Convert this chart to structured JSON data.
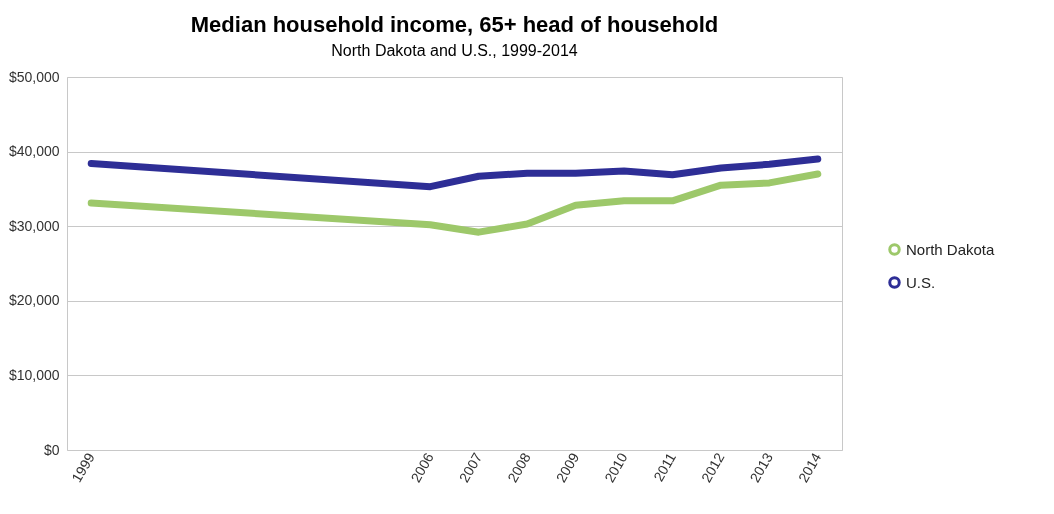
{
  "chart_data": {
    "type": "line",
    "title": "Median household income, 65+ head of household",
    "subtitle": "North Dakota and U.S., 1999-2014",
    "x": [
      1999,
      2006,
      2007,
      2008,
      2009,
      2010,
      2011,
      2012,
      2013,
      2014
    ],
    "series": [
      {
        "name": "North Dakota",
        "color": "#9dc86a",
        "values": [
          33100,
          30200,
          29200,
          30300,
          32800,
          33400,
          33400,
          35500,
          35800,
          37000
        ]
      },
      {
        "name": "U.S.",
        "color": "#2e2e96",
        "values": [
          38400,
          35300,
          36700,
          37100,
          37100,
          37400,
          36900,
          37800,
          38300,
          39000
        ]
      }
    ],
    "xlim": [
      1998.5,
      2014.5
    ],
    "xticks": [
      1999,
      2006,
      2007,
      2008,
      2009,
      2010,
      2011,
      2012,
      2013,
      2014
    ],
    "ylim": [
      0,
      50000
    ],
    "yticks": [
      {
        "value": 0,
        "label": "$0"
      },
      {
        "value": 10000,
        "label": "$10,000"
      },
      {
        "value": 20000,
        "label": "$20,000"
      },
      {
        "value": 30000,
        "label": "$30,000"
      },
      {
        "value": 40000,
        "label": "$40,000"
      },
      {
        "value": 50000,
        "label": "$50,000"
      }
    ],
    "grid": "y",
    "legend": "right",
    "marker": "none",
    "line_style": "solid"
  }
}
